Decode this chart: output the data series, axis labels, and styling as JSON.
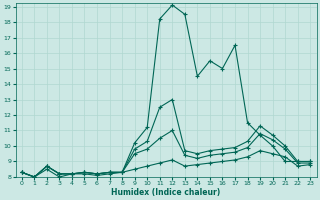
{
  "xlabel": "Humidex (Indice chaleur)",
  "background_color": "#cce8e4",
  "grid_color": "#b0d8d0",
  "line_color": "#006655",
  "xlim": [
    -0.5,
    23.5
  ],
  "ylim": [
    8,
    19.2
  ],
  "xticks": [
    0,
    1,
    2,
    3,
    4,
    5,
    6,
    7,
    8,
    9,
    10,
    11,
    12,
    13,
    14,
    15,
    16,
    17,
    18,
    19,
    20,
    21,
    22,
    23
  ],
  "yticks": [
    8,
    9,
    10,
    11,
    12,
    13,
    14,
    15,
    16,
    17,
    18,
    19
  ],
  "series": [
    [
      8.3,
      8.0,
      8.7,
      8.2,
      8.2,
      8.3,
      8.2,
      8.3,
      8.3,
      10.2,
      11.2,
      18.2,
      19.1,
      18.5,
      14.5,
      15.5,
      15.0,
      16.5,
      11.5,
      10.7,
      10.0,
      9.0,
      9.0,
      9.0
    ],
    [
      8.3,
      8.0,
      8.7,
      8.2,
      8.2,
      8.3,
      8.2,
      8.3,
      8.3,
      9.8,
      10.3,
      12.5,
      13.0,
      9.7,
      9.5,
      9.7,
      9.8,
      9.9,
      10.3,
      11.3,
      10.7,
      10.0,
      9.0,
      9.0
    ],
    [
      8.3,
      8.0,
      8.7,
      8.2,
      8.2,
      8.3,
      8.2,
      8.3,
      8.3,
      9.5,
      9.8,
      10.5,
      11.0,
      9.4,
      9.2,
      9.4,
      9.5,
      9.6,
      9.9,
      10.8,
      10.4,
      9.8,
      8.9,
      8.9
    ],
    [
      8.3,
      8.0,
      8.5,
      8.0,
      8.2,
      8.2,
      8.1,
      8.2,
      8.3,
      8.5,
      8.7,
      8.9,
      9.1,
      8.7,
      8.8,
      8.9,
      9.0,
      9.1,
      9.3,
      9.7,
      9.5,
      9.3,
      8.7,
      8.8
    ]
  ]
}
